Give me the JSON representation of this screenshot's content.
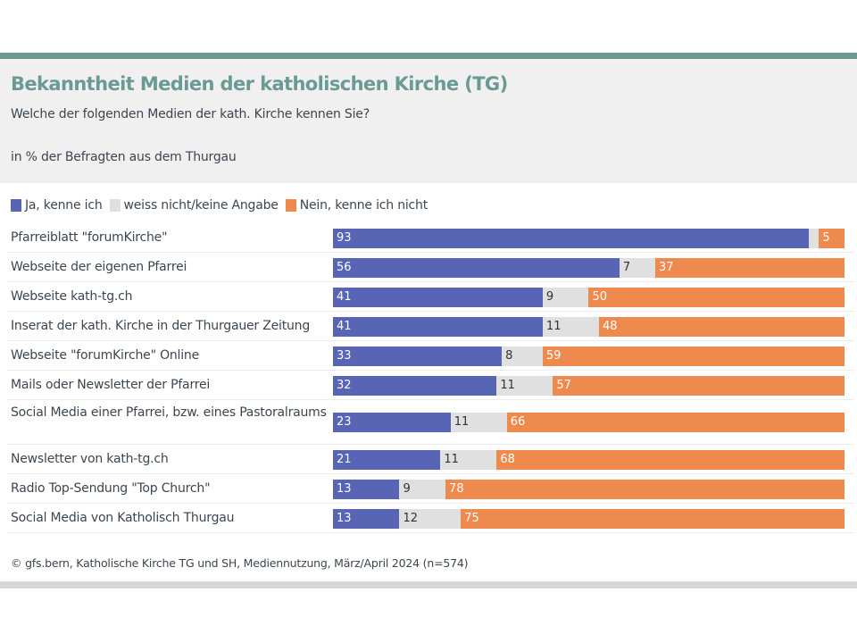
{
  "colors": {
    "yes": "#5864b4",
    "dontknow": "#e0e0e0",
    "no": "#ee8a4e",
    "title": "#6b9a95"
  },
  "chart_data": {
    "type": "bar",
    "orientation": "horizontal",
    "stacked": true,
    "title": "Bekanntheit Medien der katholischen Kirche (TG)",
    "subtitle": "Welche der folgenden Medien der kath. Kirche kennen Sie?",
    "unit_note": "in % der Befragten aus dem Thurgau",
    "legend_placement": "top-left",
    "xlim": [
      0,
      100
    ],
    "categories": [
      "Pfarreiblatt \"forumKirche\"",
      "Webseite der eigenen Pfarrei",
      "Webseite kath-tg.ch",
      "Inserat der kath. Kirche in der Thurgauer Zeitung",
      "Webseite \"forumKirche\" Online",
      "Mails oder Newsletter der Pfarrei",
      "Social Media einer Pfarrei, bzw. eines Pastoralraums",
      "Newsletter von kath-tg.ch",
      "Radio Top-Sendung \"Top Church\"",
      "Social Media von Katholisch Thurgau"
    ],
    "series": [
      {
        "name": "Ja, kenne ich",
        "values": [
          93,
          56,
          41,
          41,
          33,
          32,
          23,
          21,
          13,
          13
        ]
      },
      {
        "name": "weiss nicht/keine Angabe",
        "values": [
          2,
          7,
          9,
          11,
          8,
          11,
          11,
          11,
          9,
          12
        ]
      },
      {
        "name": "Nein, kenne ich nicht",
        "values": [
          5,
          37,
          50,
          48,
          59,
          57,
          66,
          68,
          78,
          75
        ]
      }
    ],
    "source": "© gfs.bern, Katholische Kirche TG und SH, Mediennutzung, März/April 2024 (n=574)"
  }
}
